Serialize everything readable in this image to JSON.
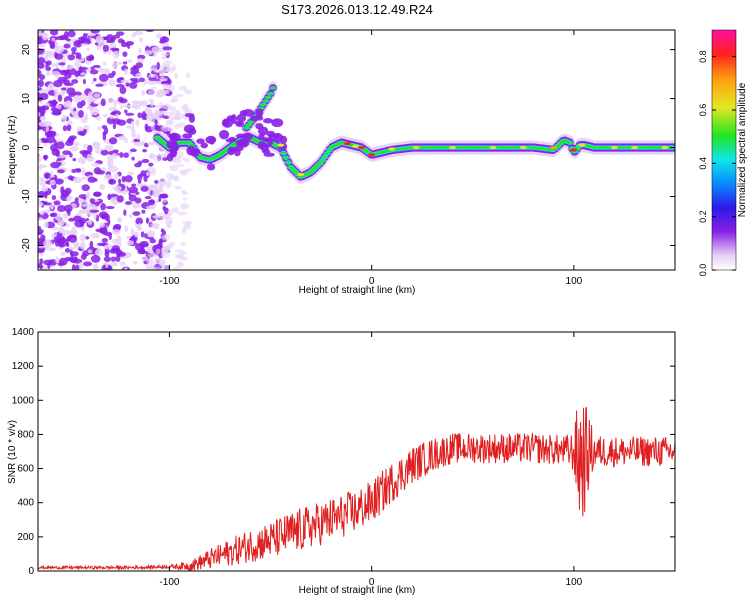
{
  "figure_title": "S173.2026.013.12.49.R24",
  "chart_data": [
    {
      "type": "heatmap",
      "title": "S173.2026.013.12.49.R24",
      "xlabel": "Height of straight line (km)",
      "ylabel": "Frequency (Hz)",
      "xlim": [
        -165,
        150
      ],
      "ylim": [
        -25,
        24
      ],
      "xticks": [
        -100,
        0,
        100
      ],
      "yticks": [
        -20,
        -10,
        0,
        10,
        20
      ],
      "colorbar": {
        "label": "Normalized spectral amplitude",
        "range": [
          0.0,
          0.9
        ],
        "ticks": [
          0.0,
          0.2,
          0.4,
          0.6,
          0.8
        ],
        "colormap": [
          "#e6d2f6",
          "#8a20e6",
          "#2a1ae6",
          "#0a8aff",
          "#10e6e6",
          "#20e620",
          "#e6e620",
          "#ff9a10",
          "#ff2020",
          "#ff10a0"
        ]
      },
      "ridge": {
        "x": [
          -106,
          -100,
          -95,
          -90,
          -85,
          -80,
          -75,
          -70,
          -65,
          -60,
          -55,
          -50,
          -45,
          -40,
          -35,
          -30,
          -25,
          -20,
          -15,
          -10,
          -5,
          0,
          5,
          10,
          20,
          30,
          40,
          50,
          60,
          70,
          80,
          90,
          95,
          98,
          100,
          103,
          105,
          110,
          120,
          130,
          140,
          150
        ],
        "y": [
          2,
          0,
          1,
          1,
          -2,
          -2.5,
          -1.5,
          0,
          1.5,
          2,
          1,
          1,
          0,
          -4,
          -6,
          -5,
          -3,
          0,
          1,
          0.5,
          0,
          -1.5,
          -1,
          -0.5,
          0,
          0,
          0,
          0,
          0,
          0,
          0,
          -0.5,
          1.5,
          1,
          -1,
          0.5,
          0.5,
          0,
          0,
          0,
          0,
          0
        ]
      },
      "upper_branch": {
        "x": [
          -62,
          -58,
          -54,
          -50,
          -48
        ],
        "y": [
          4,
          6,
          8.5,
          11,
          13
        ]
      }
    },
    {
      "type": "line",
      "xlabel": "Height of straight line (km)",
      "ylabel": "SNR (10 * v/v)",
      "xlim": [
        -165,
        150
      ],
      "ylim": [
        0,
        1400
      ],
      "xticks": [
        -100,
        0,
        100
      ],
      "yticks": [
        0,
        200,
        400,
        600,
        800,
        1000,
        1200,
        1400
      ],
      "series_color": "#e02020",
      "trend": {
        "x": [
          -165,
          -120,
          -100,
          -90,
          -80,
          -70,
          -60,
          -50,
          -40,
          -30,
          -20,
          -10,
          0,
          10,
          20,
          30,
          40,
          60,
          80,
          100,
          104,
          108,
          120,
          150
        ],
        "y": [
          20,
          20,
          25,
          30,
          70,
          110,
          150,
          180,
          220,
          260,
          300,
          340,
          400,
          520,
          620,
          680,
          720,
          720,
          720,
          700,
          650,
          700,
          700,
          700
        ]
      },
      "noise": {
        "x": [
          -165,
          -100,
          -90,
          -80,
          -70,
          -60,
          -50,
          -40,
          -30,
          -20,
          -10,
          0,
          10,
          20,
          30,
          40,
          60,
          80,
          95,
          100,
          103,
          106,
          110,
          120,
          150
        ],
        "amplitude": [
          8,
          10,
          30,
          60,
          80,
          100,
          110,
          130,
          130,
          130,
          130,
          130,
          120,
          110,
          100,
          90,
          90,
          90,
          90,
          120,
          450,
          300,
          100,
          90,
          90
        ]
      }
    }
  ]
}
